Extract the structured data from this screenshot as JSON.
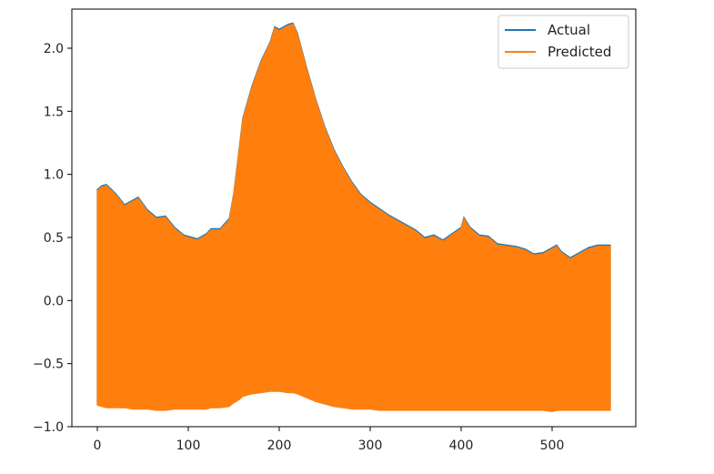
{
  "chart_data": {
    "type": "line",
    "title": "",
    "xlabel": "",
    "ylabel": "",
    "xlim": [
      -28,
      592
    ],
    "ylim": [
      -1.0,
      2.31
    ],
    "x_ticks": [
      0,
      100,
      200,
      300,
      400,
      500
    ],
    "x_tick_labels": [
      "0",
      "100",
      "200",
      "300",
      "400",
      "500"
    ],
    "y_ticks": [
      -1.0,
      -0.5,
      0.0,
      0.5,
      1.0,
      1.5,
      2.0
    ],
    "y_tick_labels": [
      "−1.0",
      "−0.5",
      "0.0",
      "0.5",
      "1.0",
      "1.5",
      "2.0"
    ],
    "grid": false,
    "legend_position": "top-right",
    "band_note_x": [
      0,
      20,
      40,
      60,
      80,
      100,
      110,
      120,
      130,
      140,
      150,
      160,
      170,
      180,
      190,
      200,
      210,
      220,
      240,
      260,
      280,
      300,
      320,
      340,
      360,
      380,
      400,
      420,
      440,
      460,
      480,
      500,
      520,
      540,
      564
    ],
    "series": [
      {
        "name": "Actual",
        "color": "#1f77b4",
        "x": [
          0,
          5,
          10,
          20,
          30,
          40,
          45,
          55,
          65,
          75,
          85,
          95,
          110,
          120,
          125,
          135,
          145,
          150,
          155,
          160,
          170,
          180,
          190,
          195,
          200,
          210,
          215,
          220,
          230,
          240,
          250,
          260,
          270,
          280,
          290,
          300,
          310,
          320,
          340,
          350,
          360,
          370,
          380,
          390,
          400,
          403,
          410,
          420,
          430,
          440,
          450,
          460,
          470,
          480,
          490,
          500,
          505,
          510,
          520,
          530,
          540,
          550,
          564
        ],
        "upper": [
          0.88,
          0.91,
          0.92,
          0.85,
          0.76,
          0.8,
          0.82,
          0.72,
          0.66,
          0.67,
          0.58,
          0.52,
          0.49,
          0.53,
          0.57,
          0.57,
          0.65,
          0.85,
          1.15,
          1.45,
          1.7,
          1.9,
          2.05,
          2.17,
          2.15,
          2.19,
          2.2,
          2.12,
          1.85,
          1.6,
          1.38,
          1.2,
          1.06,
          0.94,
          0.84,
          0.78,
          0.73,
          0.68,
          0.6,
          0.56,
          0.5,
          0.52,
          0.48,
          0.53,
          0.58,
          0.66,
          0.58,
          0.52,
          0.51,
          0.45,
          0.44,
          0.43,
          0.41,
          0.37,
          0.38,
          0.42,
          0.44,
          0.39,
          0.34,
          0.38,
          0.42,
          0.44,
          0.44
        ],
        "lower": [
          -0.82,
          -0.83,
          -0.84,
          -0.84,
          -0.84,
          -0.85,
          -0.85,
          -0.85,
          -0.86,
          -0.86,
          -0.85,
          -0.85,
          -0.85,
          -0.85,
          -0.84,
          -0.84,
          -0.83,
          -0.8,
          -0.78,
          -0.75,
          -0.73,
          -0.72,
          -0.71,
          -0.71,
          -0.71,
          -0.72,
          -0.72,
          -0.73,
          -0.76,
          -0.79,
          -0.81,
          -0.83,
          -0.84,
          -0.85,
          -0.85,
          -0.85,
          -0.86,
          -0.86,
          -0.86,
          -0.86,
          -0.86,
          -0.86,
          -0.86,
          -0.86,
          -0.86,
          -0.86,
          -0.86,
          -0.86,
          -0.86,
          -0.86,
          -0.86,
          -0.86,
          -0.86,
          -0.86,
          -0.86,
          -0.87,
          -0.86,
          -0.86,
          -0.86,
          -0.86,
          -0.86,
          -0.86,
          -0.86
        ]
      },
      {
        "name": "Predicted",
        "color": "#ff7f0e",
        "x": [
          0,
          5,
          10,
          20,
          30,
          40,
          45,
          55,
          65,
          75,
          85,
          95,
          110,
          120,
          125,
          135,
          145,
          150,
          155,
          160,
          170,
          180,
          190,
          195,
          200,
          210,
          215,
          220,
          230,
          240,
          250,
          260,
          270,
          280,
          290,
          300,
          310,
          320,
          340,
          350,
          360,
          370,
          380,
          390,
          400,
          403,
          410,
          420,
          430,
          440,
          450,
          460,
          470,
          480,
          490,
          500,
          505,
          510,
          520,
          530,
          540,
          550,
          564
        ],
        "upper": [
          0.87,
          0.9,
          0.91,
          0.84,
          0.75,
          0.79,
          0.81,
          0.71,
          0.65,
          0.66,
          0.57,
          0.51,
          0.48,
          0.52,
          0.56,
          0.56,
          0.64,
          0.84,
          1.14,
          1.44,
          1.69,
          1.89,
          2.04,
          2.16,
          2.14,
          2.18,
          2.19,
          2.11,
          1.84,
          1.59,
          1.37,
          1.19,
          1.05,
          0.93,
          0.83,
          0.77,
          0.72,
          0.67,
          0.59,
          0.55,
          0.49,
          0.51,
          0.47,
          0.52,
          0.57,
          0.65,
          0.57,
          0.51,
          0.5,
          0.44,
          0.43,
          0.42,
          0.4,
          0.36,
          0.37,
          0.41,
          0.43,
          0.38,
          0.33,
          0.37,
          0.41,
          0.43,
          0.43
        ],
        "lower": [
          -0.83,
          -0.84,
          -0.85,
          -0.85,
          -0.85,
          -0.86,
          -0.86,
          -0.86,
          -0.87,
          -0.87,
          -0.86,
          -0.86,
          -0.86,
          -0.86,
          -0.85,
          -0.85,
          -0.84,
          -0.81,
          -0.79,
          -0.76,
          -0.74,
          -0.73,
          -0.72,
          -0.72,
          -0.72,
          -0.73,
          -0.73,
          -0.74,
          -0.77,
          -0.8,
          -0.82,
          -0.84,
          -0.85,
          -0.86,
          -0.86,
          -0.86,
          -0.87,
          -0.87,
          -0.87,
          -0.87,
          -0.87,
          -0.87,
          -0.87,
          -0.87,
          -0.87,
          -0.87,
          -0.87,
          -0.87,
          -0.87,
          -0.87,
          -0.87,
          -0.87,
          -0.87,
          -0.87,
          -0.87,
          -0.88,
          -0.87,
          -0.87,
          -0.87,
          -0.87,
          -0.87,
          -0.87,
          -0.87
        ]
      }
    ],
    "legend": [
      {
        "label": "Actual",
        "color": "#1f77b4"
      },
      {
        "label": "Predicted",
        "color": "#ff7f0e"
      }
    ]
  }
}
